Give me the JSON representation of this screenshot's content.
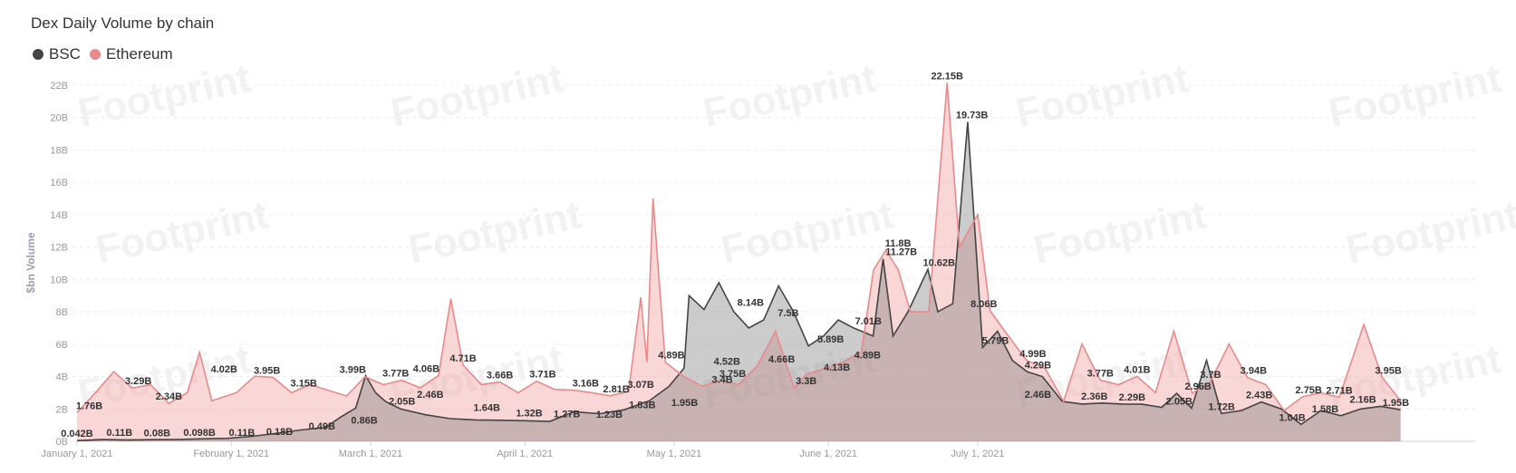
{
  "chart_data": {
    "type": "area",
    "title": "Dex Daily Volume by chain",
    "ylabel": "$bn Volume",
    "ylim": [
      0,
      22
    ],
    "yticks": [
      "0B",
      "2B",
      "4B",
      "6B",
      "8B",
      "10B",
      "12B",
      "14B",
      "16B",
      "18B",
      "20B",
      "22B"
    ],
    "xticks": [
      {
        "label": "January 1, 2021",
        "day": 0
      },
      {
        "label": "February 1, 2021",
        "day": 31
      },
      {
        "label": "March 1, 2021",
        "day": 59
      },
      {
        "label": "April 1, 2021",
        "day": 90
      },
      {
        "label": "May 1, 2021",
        "day": 120
      },
      {
        "label": "June 1, 2021",
        "day": 151
      },
      {
        "label": "July 1, 2021",
        "day": 181
      }
    ],
    "legend_position": "top-left",
    "grid": true,
    "watermark": "Footprint",
    "series": [
      {
        "name": "BSC",
        "color": "#444444",
        "fill": "rgba(110,110,110,0.35)",
        "points": [
          [
            0,
            0.04
          ],
          [
            5,
            0.11
          ],
          [
            10,
            0.08
          ],
          [
            15,
            0.1
          ],
          [
            20,
            0.11
          ],
          [
            25,
            0.15
          ],
          [
            30,
            0.18
          ],
          [
            35,
            0.3
          ],
          [
            40,
            0.49
          ],
          [
            45,
            0.7
          ],
          [
            50,
            0.86
          ],
          [
            53,
            1.5
          ],
          [
            56,
            2.05
          ],
          [
            58,
            4.06
          ],
          [
            60,
            3.0
          ],
          [
            62,
            2.46
          ],
          [
            65,
            2.0
          ],
          [
            70,
            1.64
          ],
          [
            75,
            1.4
          ],
          [
            80,
            1.32
          ],
          [
            85,
            1.3
          ],
          [
            90,
            1.27
          ],
          [
            95,
            1.23
          ],
          [
            100,
            1.83
          ],
          [
            105,
            1.7
          ],
          [
            110,
            1.95
          ],
          [
            115,
            2.5
          ],
          [
            119,
            3.4
          ],
          [
            122,
            4.52
          ],
          [
            123,
            9.0
          ],
          [
            126,
            8.14
          ],
          [
            129,
            9.8
          ],
          [
            132,
            8.0
          ],
          [
            135,
            7.0
          ],
          [
            138,
            7.5
          ],
          [
            141,
            9.6
          ],
          [
            144,
            8.0
          ],
          [
            147,
            5.89
          ],
          [
            150,
            6.5
          ],
          [
            153,
            7.5
          ],
          [
            156,
            7.01
          ],
          [
            160,
            6.5
          ],
          [
            162,
            11.27
          ],
          [
            164,
            6.5
          ],
          [
            167,
            8.0
          ],
          [
            171,
            10.62
          ],
          [
            173,
            8.0
          ],
          [
            176,
            8.5
          ],
          [
            179,
            19.73
          ],
          [
            182,
            5.79
          ],
          [
            185,
            6.8
          ],
          [
            188,
            4.99
          ],
          [
            191,
            4.29
          ],
          [
            194,
            4.0
          ],
          [
            198,
            2.46
          ],
          [
            202,
            2.3
          ],
          [
            206,
            2.36
          ],
          [
            210,
            2.3
          ],
          [
            214,
            2.29
          ],
          [
            218,
            2.1
          ],
          [
            221,
            2.96
          ],
          [
            224,
            2.05
          ],
          [
            227,
            5.0
          ],
          [
            230,
            1.72
          ],
          [
            234,
            1.9
          ],
          [
            238,
            2.43
          ],
          [
            242,
            2.0
          ],
          [
            246,
            1.04
          ],
          [
            250,
            1.9
          ],
          [
            254,
            1.58
          ],
          [
            258,
            2.0
          ],
          [
            262,
            2.16
          ],
          [
            266,
            1.95
          ]
        ],
        "labels": [
          {
            "day": 0,
            "v": 0.042,
            "text": "0.042B"
          },
          {
            "day": 9,
            "v": 0.11,
            "text": "0.11B"
          },
          {
            "day": 17,
            "v": 0.08,
            "text": "0.08B"
          },
          {
            "day": 26,
            "v": 0.098,
            "text": "0.098B"
          },
          {
            "day": 35,
            "v": 0.11,
            "text": "0.11B"
          },
          {
            "day": 43,
            "v": 0.18,
            "text": "0.18B"
          },
          {
            "day": 52,
            "v": 0.49,
            "text": "0.49B"
          },
          {
            "day": 61,
            "v": 0.86,
            "text": "0.86B"
          },
          {
            "day": 69,
            "v": 2.05,
            "text": "2.05B"
          },
          {
            "day": 75,
            "v": 2.46,
            "text": "2.46B"
          },
          {
            "day": 87,
            "v": 1.64,
            "text": "1.64B"
          },
          {
            "day": 96,
            "v": 1.32,
            "text": "1.32B"
          },
          {
            "day": 104,
            "v": 1.27,
            "text": "1.27B"
          },
          {
            "day": 113,
            "v": 1.23,
            "text": "1.23B"
          },
          {
            "day": 120,
            "v": 1.83,
            "text": "1.83B"
          },
          {
            "day": 129,
            "v": 1.95,
            "text": "1.95B"
          },
          {
            "day": 137,
            "v": 3.4,
            "text": "3.4B"
          },
          {
            "day": 138,
            "v": 4.52,
            "text": "4.52B"
          },
          {
            "day": 143,
            "v": 8.14,
            "text": "8.14B"
          },
          {
            "day": 151,
            "v": 7.5,
            "text": "7.5B"
          },
          {
            "day": 160,
            "v": 5.89,
            "text": "5.89B"
          },
          {
            "day": 168,
            "v": 7.01,
            "text": "7.01B"
          },
          {
            "day": 175,
            "v": 11.27,
            "text": "11.27B"
          },
          {
            "day": 183,
            "v": 10.62,
            "text": "10.62B"
          },
          {
            "day": 190,
            "v": 19.73,
            "text": "19.73B"
          },
          {
            "day": 195,
            "v": 5.79,
            "text": "5.79B"
          },
          {
            "day": 204,
            "v": 4.29,
            "text": "4.29B"
          },
          {
            "day": 204,
            "v": 2.46,
            "text": "2.46B"
          },
          {
            "day": 216,
            "v": 2.36,
            "text": "2.36B"
          },
          {
            "day": 224,
            "v": 2.29,
            "text": "2.29B"
          },
          {
            "day": 234,
            "v": 2.05,
            "text": "2.05B"
          },
          {
            "day": 238,
            "v": 2.96,
            "text": "2.96B"
          },
          {
            "day": 243,
            "v": 1.72,
            "text": "1.72B"
          },
          {
            "day": 251,
            "v": 2.43,
            "text": "2.43B"
          },
          {
            "day": 258,
            "v": 1.04,
            "text": "1.04B"
          },
          {
            "day": 265,
            "v": 1.58,
            "text": "1.58B"
          },
          {
            "day": 273,
            "v": 2.16,
            "text": "2.16B"
          },
          {
            "day": 280,
            "v": 1.95,
            "text": "1.95B"
          }
        ]
      },
      {
        "name": "Ethereum",
        "color": "#e88a8a",
        "fill": "rgba(240,160,160,0.42)",
        "points": [
          [
            0,
            1.76
          ],
          [
            3,
            3.0
          ],
          [
            6,
            4.3
          ],
          [
            9,
            3.29
          ],
          [
            12,
            3.5
          ],
          [
            15,
            2.34
          ],
          [
            18,
            3.0
          ],
          [
            20,
            5.5
          ],
          [
            22,
            2.5
          ],
          [
            26,
            3.0
          ],
          [
            29,
            4.02
          ],
          [
            32,
            3.95
          ],
          [
            35,
            3.0
          ],
          [
            38,
            3.5
          ],
          [
            41,
            3.15
          ],
          [
            44,
            2.8
          ],
          [
            47,
            3.99
          ],
          [
            50,
            3.5
          ],
          [
            53,
            3.77
          ],
          [
            56,
            3.3
          ],
          [
            59,
            4.06
          ],
          [
            61,
            8.8
          ],
          [
            63,
            4.71
          ],
          [
            66,
            3.5
          ],
          [
            69,
            3.66
          ],
          [
            72,
            3.0
          ],
          [
            75,
            3.71
          ],
          [
            78,
            3.2
          ],
          [
            81,
            3.16
          ],
          [
            84,
            3.0
          ],
          [
            87,
            2.81
          ],
          [
            90,
            3.07
          ],
          [
            92,
            8.9
          ],
          [
            93,
            4.89
          ],
          [
            94,
            15.0
          ],
          [
            96,
            4.89
          ],
          [
            99,
            4.0
          ],
          [
            102,
            3.4
          ],
          [
            105,
            3.75
          ],
          [
            108,
            3.5
          ],
          [
            111,
            4.66
          ],
          [
            114,
            6.8
          ],
          [
            117,
            3.3
          ],
          [
            119,
            4.13
          ],
          [
            122,
            4.5
          ],
          [
            125,
            4.89
          ],
          [
            128,
            5.5
          ],
          [
            130,
            10.6
          ],
          [
            132,
            11.8
          ],
          [
            134,
            10.62
          ],
          [
            136,
            8.0
          ],
          [
            139,
            8.0
          ],
          [
            142,
            22.15
          ],
          [
            144,
            12.0
          ],
          [
            147,
            14.0
          ],
          [
            149,
            8.06
          ],
          [
            152,
            6.5
          ],
          [
            155,
            4.99
          ],
          [
            158,
            4.5
          ],
          [
            161,
            2.46
          ],
          [
            164,
            6.0
          ],
          [
            167,
            3.77
          ],
          [
            170,
            3.5
          ],
          [
            173,
            4.01
          ],
          [
            176,
            3.0
          ],
          [
            179,
            6.8
          ],
          [
            182,
            2.96
          ],
          [
            185,
            3.7
          ],
          [
            188,
            6.0
          ],
          [
            191,
            3.94
          ],
          [
            194,
            3.5
          ],
          [
            197,
            1.9
          ],
          [
            200,
            2.75
          ],
          [
            203,
            3.0
          ],
          [
            206,
            2.71
          ],
          [
            210,
            7.2
          ],
          [
            213,
            3.95
          ],
          [
            216,
            2.5
          ]
        ],
        "labels": [
          {
            "day": 2,
            "v": 1.76,
            "text": "1.76B"
          },
          {
            "day": 10,
            "v": 3.29,
            "text": "3.29B"
          },
          {
            "day": 15,
            "v": 2.34,
            "text": "2.34B"
          },
          {
            "day": 24,
            "v": 4.02,
            "text": "4.02B"
          },
          {
            "day": 31,
            "v": 3.95,
            "text": "3.95B"
          },
          {
            "day": 37,
            "v": 3.15,
            "text": "3.15B"
          },
          {
            "day": 45,
            "v": 3.99,
            "text": "3.99B"
          },
          {
            "day": 52,
            "v": 3.77,
            "text": "3.77B"
          },
          {
            "day": 57,
            "v": 4.06,
            "text": "4.06B"
          },
          {
            "day": 63,
            "v": 4.71,
            "text": "4.71B"
          },
          {
            "day": 69,
            "v": 3.66,
            "text": "3.66B"
          },
          {
            "day": 76,
            "v": 3.71,
            "text": "3.71B"
          },
          {
            "day": 83,
            "v": 3.16,
            "text": "3.16B"
          },
          {
            "day": 88,
            "v": 2.81,
            "text": "2.81B"
          },
          {
            "day": 92,
            "v": 3.07,
            "text": "3.07B"
          },
          {
            "day": 97,
            "v": 4.89,
            "text": "4.89B"
          },
          {
            "day": 107,
            "v": 3.75,
            "text": "3.75B"
          },
          {
            "day": 115,
            "v": 4.66,
            "text": "4.66B"
          },
          {
            "day": 119,
            "v": 3.3,
            "text": "3.3B"
          },
          {
            "day": 124,
            "v": 4.13,
            "text": "4.13B"
          },
          {
            "day": 129,
            "v": 4.89,
            "text": "4.89B"
          },
          {
            "day": 134,
            "v": 11.8,
            "text": "11.8B"
          },
          {
            "day": 142,
            "v": 22.15,
            "text": "22.15B"
          },
          {
            "day": 148,
            "v": 8.06,
            "text": "8.06B"
          },
          {
            "day": 156,
            "v": 4.99,
            "text": "4.99B"
          },
          {
            "day": 167,
            "v": 3.77,
            "text": "3.77B"
          },
          {
            "day": 173,
            "v": 4.01,
            "text": "4.01B"
          },
          {
            "day": 185,
            "v": 3.7,
            "text": "3.7B"
          },
          {
            "day": 192,
            "v": 3.94,
            "text": "3.94B"
          },
          {
            "day": 201,
            "v": 2.75,
            "text": "2.75B"
          },
          {
            "day": 206,
            "v": 2.71,
            "text": "2.71B"
          },
          {
            "day": 214,
            "v": 3.95,
            "text": "3.95B"
          }
        ]
      }
    ]
  }
}
